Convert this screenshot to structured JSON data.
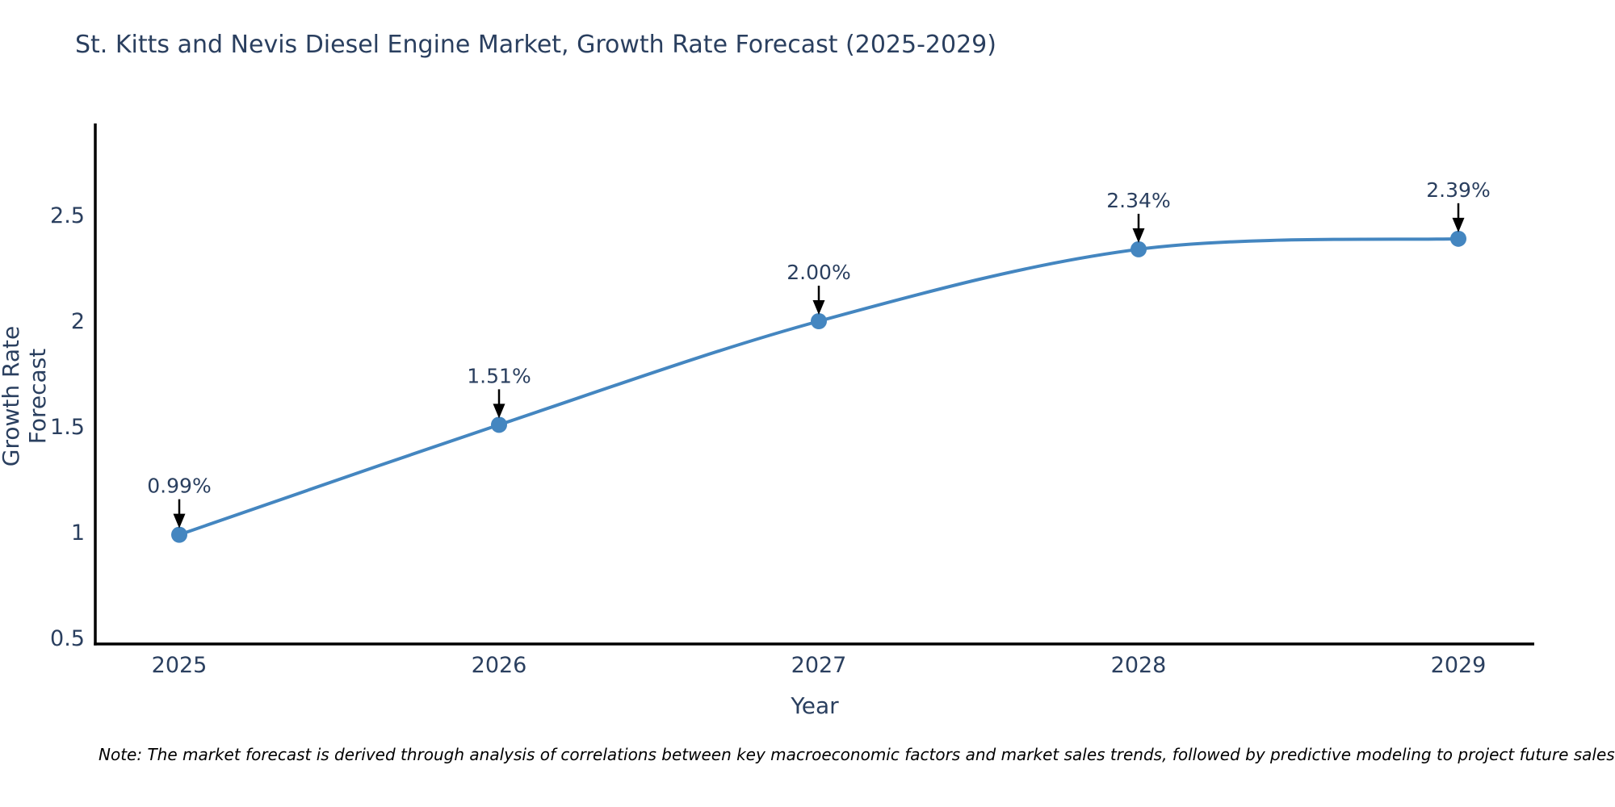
{
  "title": "St. Kitts and Nevis Diesel Engine Market, Growth Rate Forecast (2025-2029)",
  "note": "Note: The market forecast is derived through analysis of correlations between key macroeconomic factors and market sales trends, followed by predictive modeling to project future sales",
  "chart_data": {
    "type": "line",
    "title": "St. Kitts and Nevis Diesel Engine Market, Growth Rate Forecast (2025-2029)",
    "categories": [
      "2025",
      "2026",
      "2027",
      "2028",
      "2029"
    ],
    "x": [
      2025,
      2026,
      2027,
      2028,
      2029
    ],
    "values": [
      0.99,
      1.51,
      2.0,
      2.34,
      2.39
    ],
    "point_labels": [
      "0.99%",
      "1.51%",
      "2.00%",
      "2.34%",
      "2.39%"
    ],
    "xlabel": "Year",
    "ylabel": "Growth Rate Forecast",
    "yticks": [
      "0.5",
      "1",
      "1.5",
      "2",
      "2.5"
    ],
    "ylim": [
      0.47,
      2.93
    ],
    "xlim": [
      2024.74,
      2029.24
    ],
    "grid": false,
    "legend": "none",
    "line_shape": "spline",
    "line_color": "#4486c0",
    "marker_color": "#4486c0",
    "axis_color": "#000000",
    "text_color": "#2a3f5f",
    "annotation_arrow_color": "#000000"
  }
}
